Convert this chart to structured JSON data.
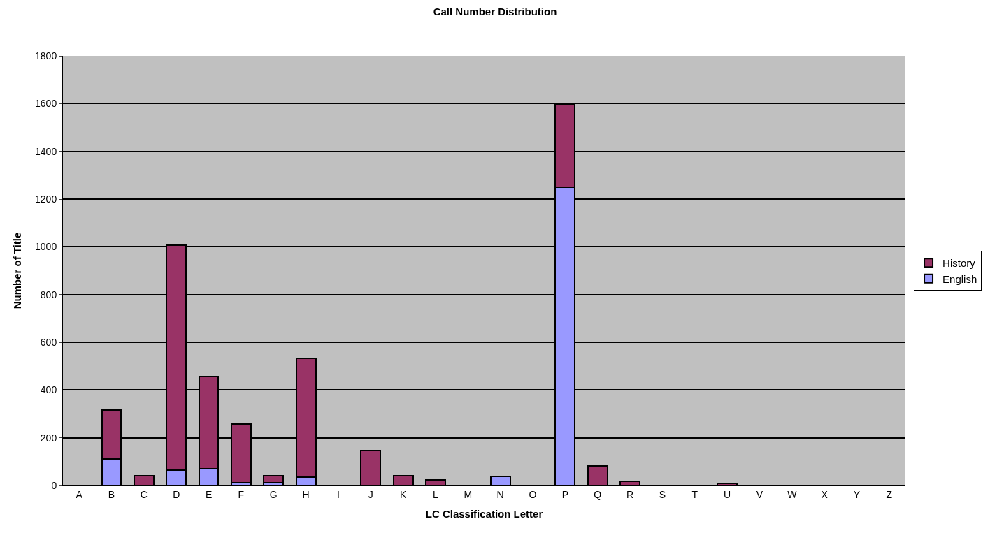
{
  "chart_data": {
    "type": "bar",
    "title": "Call Number Distribution",
    "xlabel": "LC Classification Letter",
    "ylabel": "Number of Title",
    "categories": [
      "A",
      "B",
      "C",
      "D",
      "E",
      "F",
      "G",
      "H",
      "I",
      "J",
      "K",
      "L",
      "M",
      "N",
      "O",
      "P",
      "Q",
      "R",
      "S",
      "T",
      "U",
      "V",
      "W",
      "X",
      "Y",
      "Z"
    ],
    "stacked": true,
    "series": [
      {
        "name": "English",
        "color": "#9999ff",
        "values": [
          null,
          110,
          null,
          65,
          70,
          12,
          12,
          35,
          null,
          null,
          null,
          null,
          null,
          37,
          null,
          1251,
          null,
          null,
          null,
          null,
          null,
          null,
          null,
          null,
          null,
          null
        ]
      },
      {
        "name": "History",
        "color": "#993366",
        "values": [
          null,
          207,
          42,
          941,
          386,
          246,
          30,
          497,
          null,
          147,
          42,
          24,
          null,
          null,
          null,
          343,
          83,
          18,
          null,
          null,
          9,
          null,
          null,
          null,
          null,
          null
        ]
      }
    ],
    "ylim": [
      0,
      1800
    ],
    "yticks": [
      0,
      200,
      400,
      600,
      800,
      1000,
      1200,
      1400,
      1600,
      1800
    ],
    "grid": "y",
    "legend": "right"
  }
}
